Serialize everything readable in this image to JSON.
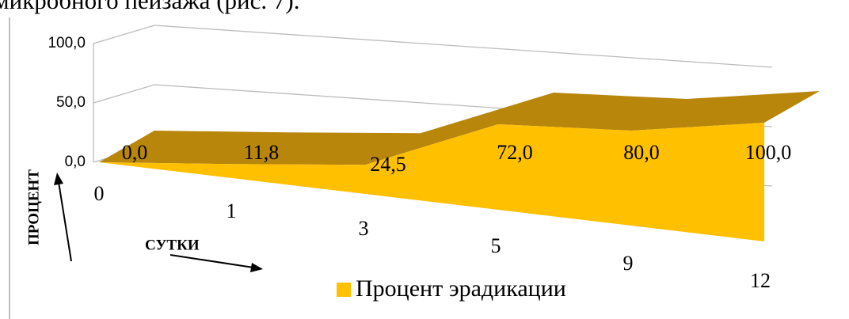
{
  "document": {
    "text": "микробного пейзажа (рис. 7)."
  },
  "chart_data": {
    "type": "area",
    "categories": [
      "0",
      "1",
      "3",
      "5",
      "9",
      "12"
    ],
    "series": [
      {
        "name": "Процент эрадикации",
        "color": "#ffc000",
        "top_color": "#b8860b",
        "values": [
          0,
          11.8,
          24.5,
          72,
          80,
          100
        ],
        "value_labels": [
          "0,0",
          "11,8",
          "24,5",
          "72,0",
          "80,0",
          "100,0"
        ]
      }
    ],
    "ylim": [
      0,
      100
    ],
    "yticks": [
      {
        "value": 0,
        "label": "0,0"
      },
      {
        "value": 50,
        "label": "50,0"
      },
      {
        "value": 100,
        "label": "100,0"
      }
    ],
    "grid": true,
    "y_label": "ПРОЦЕНТ",
    "x_label": "СУТКИ"
  }
}
